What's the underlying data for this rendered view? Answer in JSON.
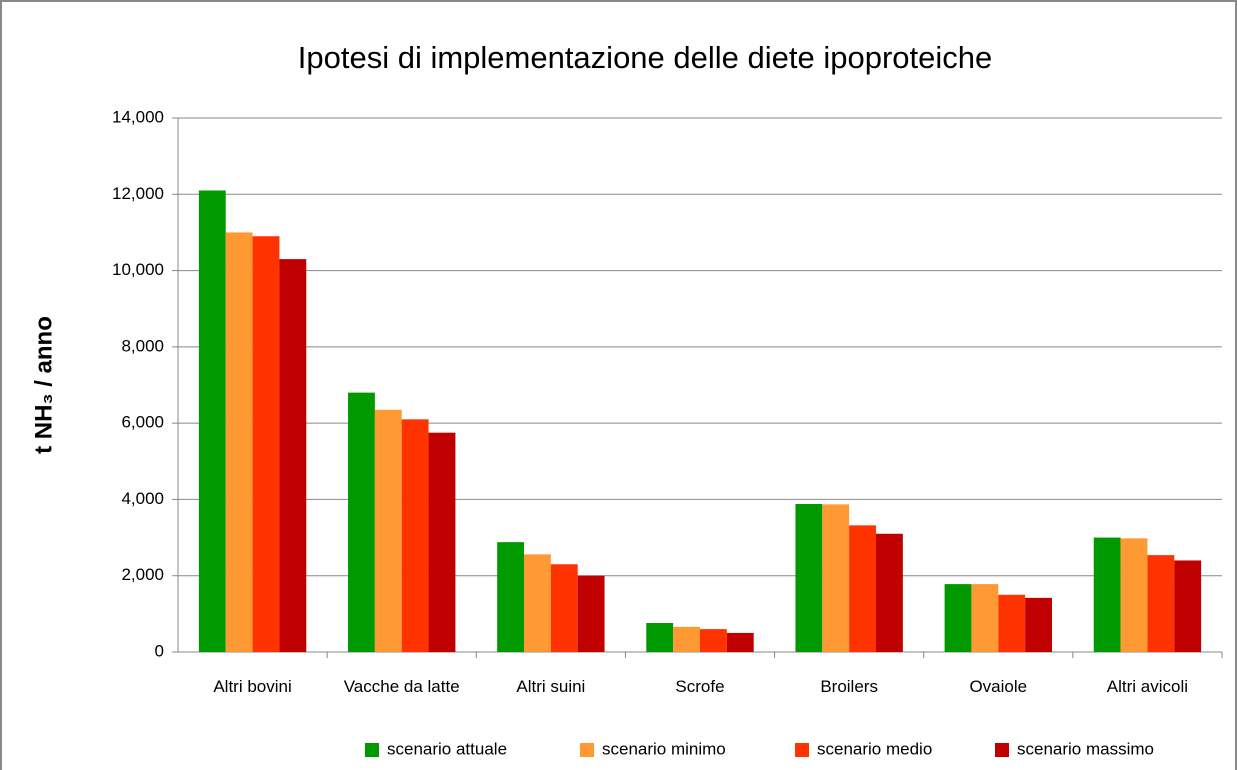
{
  "chart_data": {
    "type": "bar",
    "title": "Ipotesi di implementazione delle diete ipoproteiche",
    "y_label": "t NH₃ / anno",
    "categories": [
      "Altri bovini",
      "Vacche da latte",
      "Altri suini",
      "Scrofe",
      "Broilers",
      "Ovaiole",
      "Altri avicoli"
    ],
    "series": [
      {
        "name": "scenario attuale",
        "color": "#009900",
        "values": [
          12100,
          6800,
          2880,
          760,
          3880,
          1780,
          3000
        ]
      },
      {
        "name": "scenario minimo",
        "color": "#ff9933",
        "values": [
          11000,
          6350,
          2560,
          660,
          3870,
          1780,
          2980
        ]
      },
      {
        "name": "scenario medio",
        "color": "#ff3300",
        "values": [
          10900,
          6100,
          2300,
          600,
          3320,
          1500,
          2540
        ]
      },
      {
        "name": "scenario massimo",
        "color": "#c00000",
        "values": [
          10300,
          5750,
          2000,
          500,
          3100,
          1420,
          2400
        ]
      }
    ],
    "ylim": [
      0,
      14000
    ],
    "yticks": [
      0,
      {
        "value": 2000,
        "label": "2,000"
      },
      {
        "value": 4000,
        "label": "4,000"
      },
      {
        "value": 6000,
        "label": "6,000"
      },
      {
        "value": 8000,
        "label": "8,000"
      },
      {
        "value": 10000,
        "label": "10,000"
      },
      {
        "value": 12000,
        "label": "12,000"
      },
      {
        "value": 14000,
        "label": "14,000"
      }
    ],
    "grid": true,
    "legend": "bottom"
  }
}
